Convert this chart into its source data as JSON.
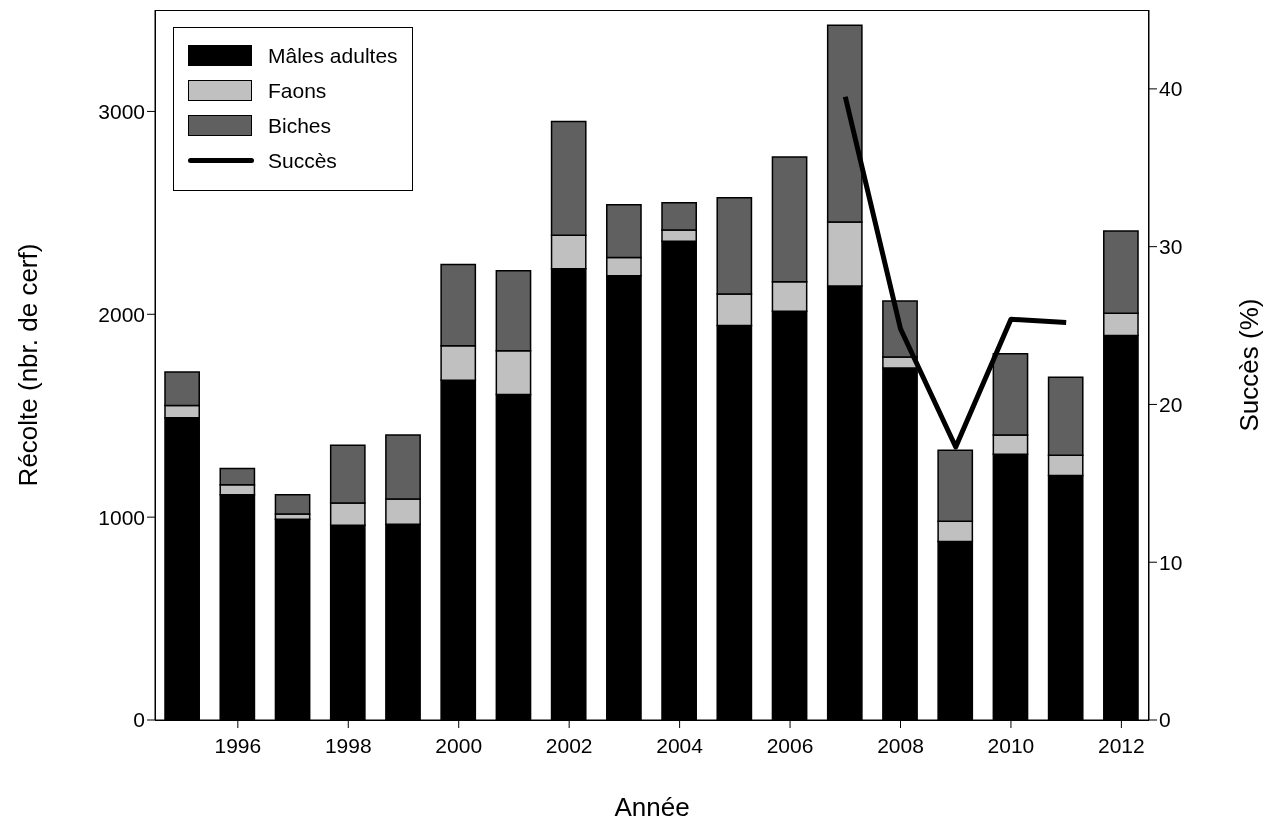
{
  "chart_data": {
    "type": "bar",
    "stacked": true,
    "xlabel": "Année",
    "ylabel": "Récolte (nbr. de cerf)",
    "y2label": "Succès (%)",
    "x": [
      1995,
      1996,
      1997,
      1998,
      1999,
      2000,
      2001,
      2002,
      2003,
      2004,
      2005,
      2006,
      2007,
      2008,
      2009,
      2010,
      2011,
      2012
    ],
    "xlim": [
      1994.5,
      2012.5
    ],
    "xticks": [
      1996,
      1998,
      2000,
      2002,
      2004,
      2006,
      2008,
      2010,
      2012
    ],
    "ylim": [
      0,
      3500
    ],
    "yticks": [
      0,
      1000,
      2000,
      3000
    ],
    "y2lim": [
      0,
      45
    ],
    "y2ticks": [
      0,
      10,
      20,
      30,
      40
    ],
    "legend": "top left",
    "series": [
      {
        "name": "Mâles adultes",
        "color": "#000000",
        "values": [
          1490,
          1110,
          990,
          960,
          965,
          1675,
          1605,
          2225,
          2190,
          2360,
          1945,
          2015,
          2140,
          1735,
          880,
          1310,
          1205,
          1895
        ]
      },
      {
        "name": "Faons",
        "color": "#c0c0c0",
        "values": [
          60,
          50,
          25,
          110,
          125,
          170,
          215,
          165,
          90,
          55,
          155,
          145,
          315,
          55,
          100,
          95,
          100,
          110
        ]
      },
      {
        "name": "Biches",
        "color": "#606060",
        "values": [
          165,
          80,
          95,
          285,
          315,
          400,
          395,
          560,
          260,
          135,
          475,
          615,
          970,
          275,
          350,
          400,
          385,
          405
        ]
      },
      {
        "name": "Succès",
        "type": "line",
        "axis": "y2",
        "color": "#000000",
        "values": [
          null,
          null,
          null,
          null,
          null,
          null,
          null,
          null,
          null,
          null,
          null,
          null,
          39.5,
          24.8,
          17.3,
          25.4,
          25.2,
          null
        ]
      }
    ]
  }
}
